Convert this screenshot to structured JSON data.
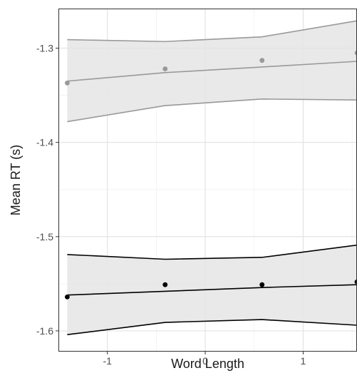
{
  "chart_data": {
    "type": "line",
    "title": "",
    "xlabel": "Word Length",
    "ylabel": "Mean RT (s)",
    "xlim": [
      -1.5,
      1.55
    ],
    "ylim": [
      -1.622,
      -1.258
    ],
    "x_ticks": [
      -1,
      0,
      1
    ],
    "x_tick_labels": [
      "-1",
      "0",
      "1"
    ],
    "y_ticks": [
      -1.3,
      -1.4,
      -1.5,
      -1.6
    ],
    "y_tick_labels": [
      "-1.3",
      "-1.4",
      "-1.5",
      "-1.6"
    ],
    "grid": true,
    "legend": "none",
    "series": [
      {
        "color": "#999999",
        "points": {
          "x": [
            -1.41,
            -0.41,
            0.58,
            1.55
          ],
          "y": [
            -1.337,
            -1.322,
            -1.313,
            -1.305
          ]
        },
        "fit": {
          "x": [
            -1.41,
            -0.41,
            0.58,
            1.55
          ],
          "y": [
            -1.335,
            -1.326,
            -1.32,
            -1.314
          ],
          "ci_upper": [
            -1.291,
            -1.293,
            -1.288,
            -1.271
          ],
          "ci_lower": [
            -1.378,
            -1.361,
            -1.354,
            -1.355
          ]
        }
      },
      {
        "color": "#000000",
        "points": {
          "x": [
            -1.41,
            -0.41,
            0.58,
            1.55
          ],
          "y": [
            -1.564,
            -1.551,
            -1.551,
            -1.548
          ]
        },
        "fit": {
          "x": [
            -1.41,
            -0.41,
            0.58,
            1.55
          ],
          "y": [
            -1.562,
            -1.558,
            -1.554,
            -1.551
          ],
          "ci_upper": [
            -1.519,
            -1.524,
            -1.522,
            -1.509
          ],
          "ci_lower": [
            -1.604,
            -1.591,
            -1.588,
            -1.594
          ]
        }
      }
    ]
  }
}
